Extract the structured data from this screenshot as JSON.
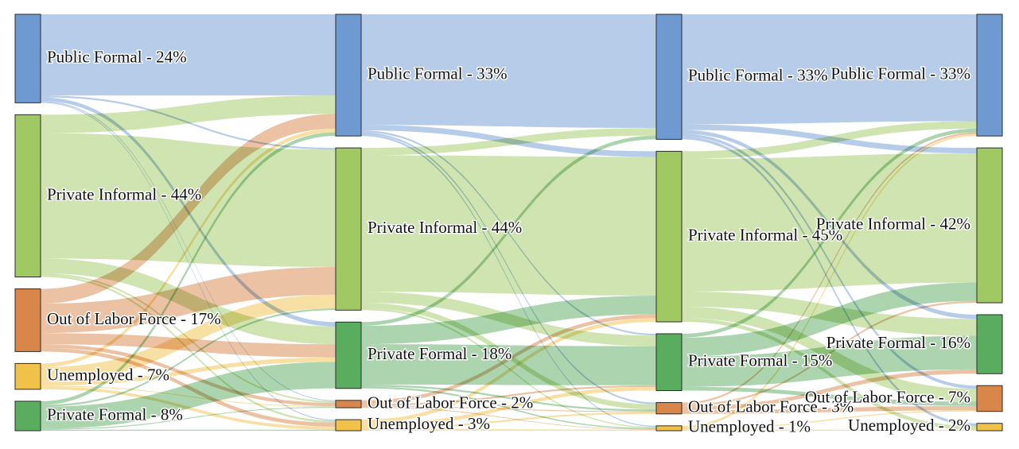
{
  "chart_data": {
    "type": "sankey",
    "title": "",
    "colors": {
      "Public Formal": "#6f9ad1",
      "Private Informal": "#a0c963",
      "Out of Labor Force": "#d9864a",
      "Unemployed": "#f1c24a",
      "Private Formal": "#5aac5f"
    },
    "stages": [
      {
        "nodes": [
          {
            "category": "Public Formal",
            "pct": 24,
            "label": "Public Formal - 24%"
          },
          {
            "category": "Private Informal",
            "pct": 44,
            "label": "Private Informal - 44%"
          },
          {
            "category": "Out of Labor Force",
            "pct": 17,
            "label": "Out of Labor Force - 17%"
          },
          {
            "category": "Unemployed",
            "pct": 7,
            "label": "Unemployed - 7%"
          },
          {
            "category": "Private Formal",
            "pct": 8,
            "label": "Private Formal - 8%"
          }
        ]
      },
      {
        "nodes": [
          {
            "category": "Public Formal",
            "pct": 33,
            "label": "Public Formal - 33%"
          },
          {
            "category": "Private Informal",
            "pct": 44,
            "label": "Private Informal - 44%"
          },
          {
            "category": "Private Formal",
            "pct": 18,
            "label": "Private Formal - 18%"
          },
          {
            "category": "Out of Labor Force",
            "pct": 2,
            "label": "Out of Labor Force - 2%"
          },
          {
            "category": "Unemployed",
            "pct": 3,
            "label": "Unemployed - 3%"
          }
        ]
      },
      {
        "nodes": [
          {
            "category": "Public Formal",
            "pct": 33,
            "label": "Public Formal - 33%"
          },
          {
            "category": "Private Informal",
            "pct": 45,
            "label": "Private Informal - 45%"
          },
          {
            "category": "Private Formal",
            "pct": 15,
            "label": "Private Formal - 15%"
          },
          {
            "category": "Out of Labor Force",
            "pct": 3,
            "label": "Out of Labor Force - 3%"
          },
          {
            "category": "Unemployed",
            "pct": 1,
            "label": "Unemployed - 1%"
          }
        ]
      },
      {
        "nodes": [
          {
            "category": "Public Formal",
            "pct": 33,
            "label": "Public Formal - 33%"
          },
          {
            "category": "Private Informal",
            "pct": 42,
            "label": "Private Informal - 42%"
          },
          {
            "category": "Private Formal",
            "pct": 16,
            "label": "Private Formal - 16%"
          },
          {
            "category": "Out of Labor Force",
            "pct": 7,
            "label": "Out of Labor Force - 7%"
          },
          {
            "category": "Unemployed",
            "pct": 2,
            "label": "Unemployed - 2%"
          }
        ]
      }
    ],
    "flows": [
      [
        [
          0,
          0,
          22
        ],
        [
          0,
          1,
          0.5
        ],
        [
          0,
          2,
          1
        ],
        [
          0,
          3,
          0.25
        ],
        [
          0,
          4,
          0.25
        ],
        [
          1,
          0,
          5
        ],
        [
          1,
          1,
          34
        ],
        [
          1,
          2,
          4
        ],
        [
          1,
          3,
          0.5
        ],
        [
          1,
          4,
          0.5
        ],
        [
          2,
          0,
          4
        ],
        [
          2,
          1,
          8
        ],
        [
          2,
          2,
          3
        ],
        [
          2,
          3,
          1
        ],
        [
          2,
          4,
          1
        ],
        [
          3,
          0,
          1
        ],
        [
          3,
          1,
          4
        ],
        [
          3,
          2,
          1
        ],
        [
          3,
          3,
          0.25
        ],
        [
          3,
          4,
          0.75
        ],
        [
          4,
          0,
          1
        ],
        [
          4,
          1,
          0.5
        ],
        [
          4,
          2,
          6
        ],
        [
          4,
          3,
          0.25
        ],
        [
          4,
          4,
          0.25
        ]
      ],
      [
        [
          0,
          0,
          30
        ],
        [
          0,
          1,
          1.5
        ],
        [
          0,
          2,
          0.5
        ],
        [
          0,
          3,
          0.5
        ],
        [
          0,
          4,
          0.5
        ],
        [
          1,
          0,
          2
        ],
        [
          1,
          1,
          37
        ],
        [
          1,
          2,
          3
        ],
        [
          1,
          3,
          1.5
        ],
        [
          1,
          4,
          0.5
        ],
        [
          2,
          0,
          1
        ],
        [
          2,
          1,
          5
        ],
        [
          2,
          2,
          11
        ],
        [
          2,
          3,
          0.5
        ],
        [
          2,
          4,
          0.5
        ],
        [
          3,
          0,
          0
        ],
        [
          3,
          1,
          1
        ],
        [
          3,
          2,
          0.5
        ],
        [
          3,
          3,
          0.25
        ],
        [
          3,
          4,
          0.25
        ],
        [
          4,
          0,
          0
        ],
        [
          4,
          1,
          1
        ],
        [
          4,
          2,
          1
        ],
        [
          4,
          3,
          0.5
        ],
        [
          4,
          4,
          0.5
        ]
      ],
      [
        [
          0,
          0,
          29
        ],
        [
          0,
          1,
          1.5
        ],
        [
          0,
          2,
          1
        ],
        [
          0,
          3,
          0.75
        ],
        [
          0,
          4,
          0.75
        ],
        [
          1,
          0,
          2
        ],
        [
          1,
          1,
          35
        ],
        [
          1,
          2,
          4
        ],
        [
          1,
          3,
          3
        ],
        [
          1,
          4,
          1
        ],
        [
          2,
          0,
          1
        ],
        [
          2,
          1,
          5
        ],
        [
          2,
          2,
          8
        ],
        [
          2,
          3,
          1
        ],
        [
          2,
          4,
          0
        ],
        [
          3,
          0,
          0.5
        ],
        [
          3,
          1,
          0.5
        ],
        [
          3,
          2,
          1
        ],
        [
          3,
          3,
          1
        ],
        [
          3,
          4,
          0
        ],
        [
          4,
          0,
          0.5
        ],
        [
          4,
          1,
          0
        ],
        [
          4,
          2,
          0
        ],
        [
          4,
          3,
          0.25
        ],
        [
          4,
          4,
          0.25
        ]
      ]
    ]
  }
}
